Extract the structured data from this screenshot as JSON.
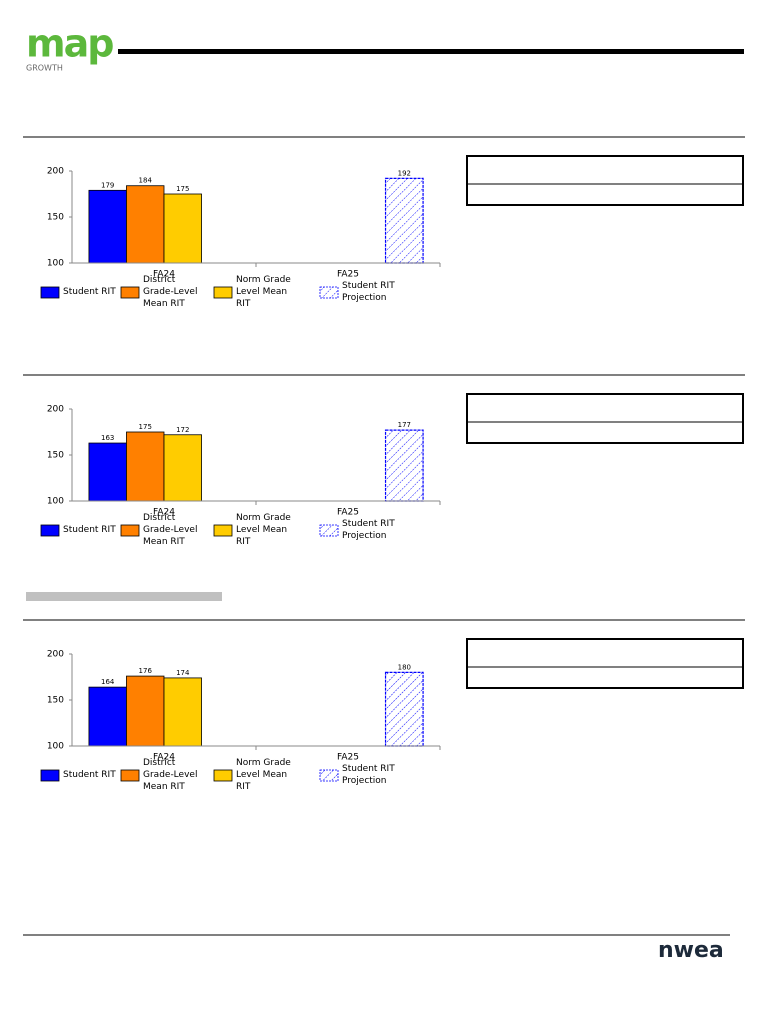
{
  "header": {
    "logo": "map",
    "logo_sub": "GROWTH"
  },
  "footer": {
    "logo": "nwea"
  },
  "chart_data": [
    {
      "type": "bar",
      "categories": [
        "FA24",
        "FA25"
      ],
      "ylim": [
        100,
        200
      ],
      "yticks": [
        100,
        150,
        200
      ],
      "series": [
        {
          "name": "Student RIT",
          "color": "#0000ff",
          "values": [
            179,
            null
          ]
        },
        {
          "name": "District Grade-Level Mean RIT",
          "color": "#ff8000",
          "values": [
            184,
            null
          ]
        },
        {
          "name": "Norm Grade Level Mean RIT",
          "color": "#ffcc00",
          "values": [
            175,
            null
          ]
        },
        {
          "name": "Student RIT Projection",
          "color": "#0000ff",
          "pattern": "hatch",
          "values": [
            null,
            192
          ]
        }
      ]
    },
    {
      "type": "bar",
      "categories": [
        "FA24",
        "FA25"
      ],
      "ylim": [
        100,
        200
      ],
      "yticks": [
        100,
        150,
        200
      ],
      "series": [
        {
          "name": "Student RIT",
          "color": "#0000ff",
          "values": [
            163,
            null
          ]
        },
        {
          "name": "District Grade-Level Mean RIT",
          "color": "#ff8000",
          "values": [
            175,
            null
          ]
        },
        {
          "name": "Norm Grade Level Mean RIT",
          "color": "#ffcc00",
          "values": [
            172,
            null
          ]
        },
        {
          "name": "Student RIT Projection",
          "color": "#0000ff",
          "pattern": "hatch",
          "values": [
            null,
            177
          ]
        }
      ]
    },
    {
      "type": "bar",
      "categories": [
        "FA24",
        "FA25"
      ],
      "ylim": [
        100,
        200
      ],
      "yticks": [
        100,
        150,
        200
      ],
      "series": [
        {
          "name": "Student RIT",
          "color": "#0000ff",
          "values": [
            164,
            null
          ]
        },
        {
          "name": "District Grade-Level Mean RIT",
          "color": "#ff8000",
          "values": [
            176,
            null
          ]
        },
        {
          "name": "Norm Grade Level Mean RIT",
          "color": "#ffcc00",
          "values": [
            174,
            null
          ]
        },
        {
          "name": "Student RIT Projection",
          "color": "#0000ff",
          "pattern": "hatch",
          "values": [
            null,
            180
          ]
        }
      ]
    }
  ]
}
